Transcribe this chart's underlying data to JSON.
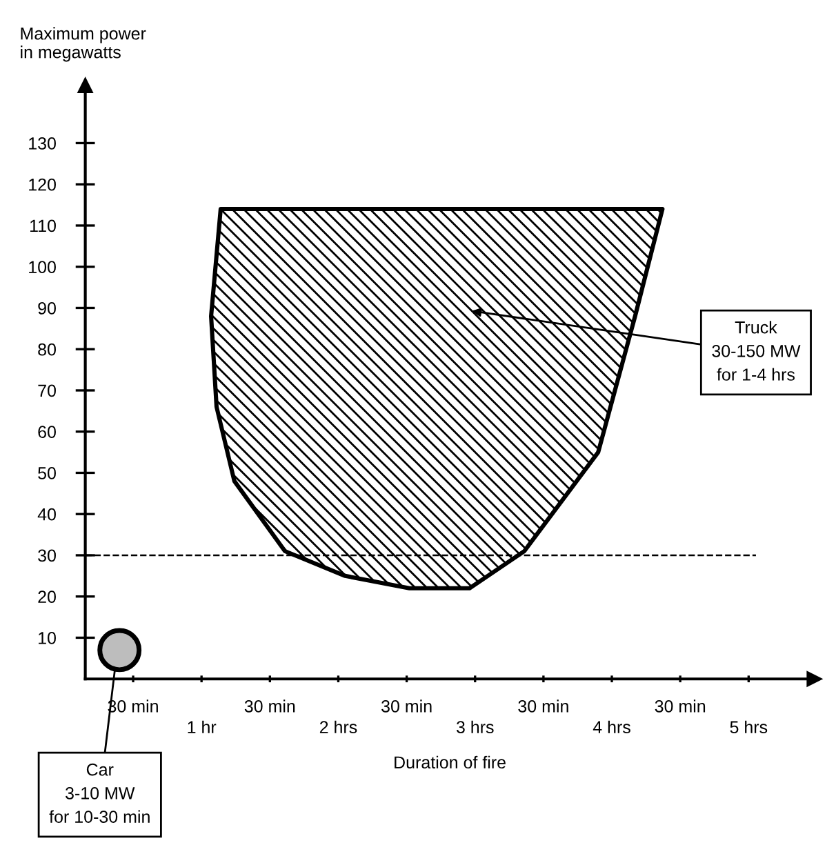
{
  "chart_data": {
    "type": "area",
    "xlabel": "Duration of fire",
    "ylabel": "Maximum power\nin megawatts",
    "xlim": [
      0.15,
      5.48
    ],
    "ylim": [
      0,
      144
    ],
    "xticks": [
      {
        "value": 0.5,
        "label": null
      },
      {
        "value": 1,
        "label": "1 hr"
      },
      {
        "value": 1.5,
        "label": null
      },
      {
        "value": 2,
        "label": "2 hrs"
      },
      {
        "value": 2.5,
        "label": null
      },
      {
        "value": 3,
        "label": "3 hrs"
      },
      {
        "value": 3.5,
        "label": null
      },
      {
        "value": 4,
        "label": "4 hrs"
      },
      {
        "value": 4.5,
        "label": null
      },
      {
        "value": 5,
        "label": "5 hrs"
      }
    ],
    "yticks": [
      10,
      20,
      30,
      40,
      50,
      60,
      70,
      80,
      90,
      100,
      110,
      120,
      130
    ],
    "grid": false,
    "legend": false,
    "series": [
      {
        "type": "area",
        "color": "#000000",
        "x": [
          1.14,
          1.07,
          1.11,
          1.24,
          1.61,
          2.05,
          2.52,
          2.96,
          3.36,
          3.9,
          4.17,
          4.37,
          1.14
        ],
        "values": [
          114,
          88,
          66,
          48,
          31,
          25,
          22,
          22,
          31,
          55,
          88,
          114,
          114
        ]
      },
      {
        "type": "scatter",
        "marker": "circle",
        "color": "#bdbdbd",
        "x": [
          0.4
        ],
        "values": [
          7
        ]
      }
    ],
    "ref_lines": [
      {
        "axis": "y",
        "value": 30,
        "line_style": "dashed",
        "color": "#000000"
      }
    ],
    "annotations": [
      "Truck\n30-150 MW\nfor 1-4 hrs",
      {
        "text": "Car\n3-10 MW\nfor 10-30 min",
        "x": 0.38,
        "y": 6
      },
      "30 min",
      "30 min",
      "30 min",
      "30 min",
      "30 min"
    ]
  }
}
